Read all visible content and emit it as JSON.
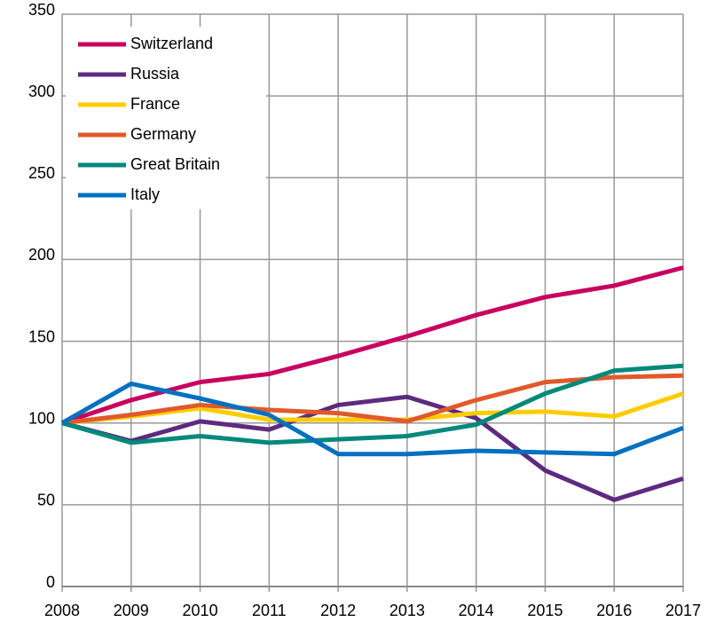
{
  "chart_data": {
    "type": "line",
    "categories": [
      "2008",
      "2009",
      "2010",
      "2011",
      "2012",
      "2013",
      "2014",
      "2015",
      "2016",
      "2017"
    ],
    "series": [
      {
        "name": "Switzerland",
        "color": "#c8005f",
        "values": [
          100,
          114,
          125,
          130,
          141,
          153,
          166,
          177,
          184,
          195
        ]
      },
      {
        "name": "Russia",
        "color": "#5d2a80",
        "values": [
          100,
          89,
          101,
          96,
          111,
          116,
          103,
          71,
          53,
          66
        ]
      },
      {
        "name": "France",
        "color": "#ffcc00",
        "values": [
          100,
          104,
          109,
          102,
          102,
          102,
          106,
          107,
          104,
          118
        ]
      },
      {
        "name": "Germany",
        "color": "#e05a2b",
        "values": [
          100,
          105,
          111,
          108,
          106,
          101,
          114,
          125,
          128,
          129
        ]
      },
      {
        "name": "Great Britain",
        "color": "#00897b",
        "values": [
          100,
          88,
          92,
          88,
          90,
          92,
          99,
          118,
          132,
          135
        ]
      },
      {
        "name": "Italy",
        "color": "#0070c0",
        "values": [
          100,
          124,
          115,
          105,
          81,
          81,
          83,
          82,
          81,
          97
        ]
      }
    ],
    "ylim": [
      0,
      350
    ],
    "yticks": [
      0,
      50,
      100,
      150,
      200,
      250,
      300,
      350
    ],
    "grid": true,
    "legend": "upper-left"
  }
}
